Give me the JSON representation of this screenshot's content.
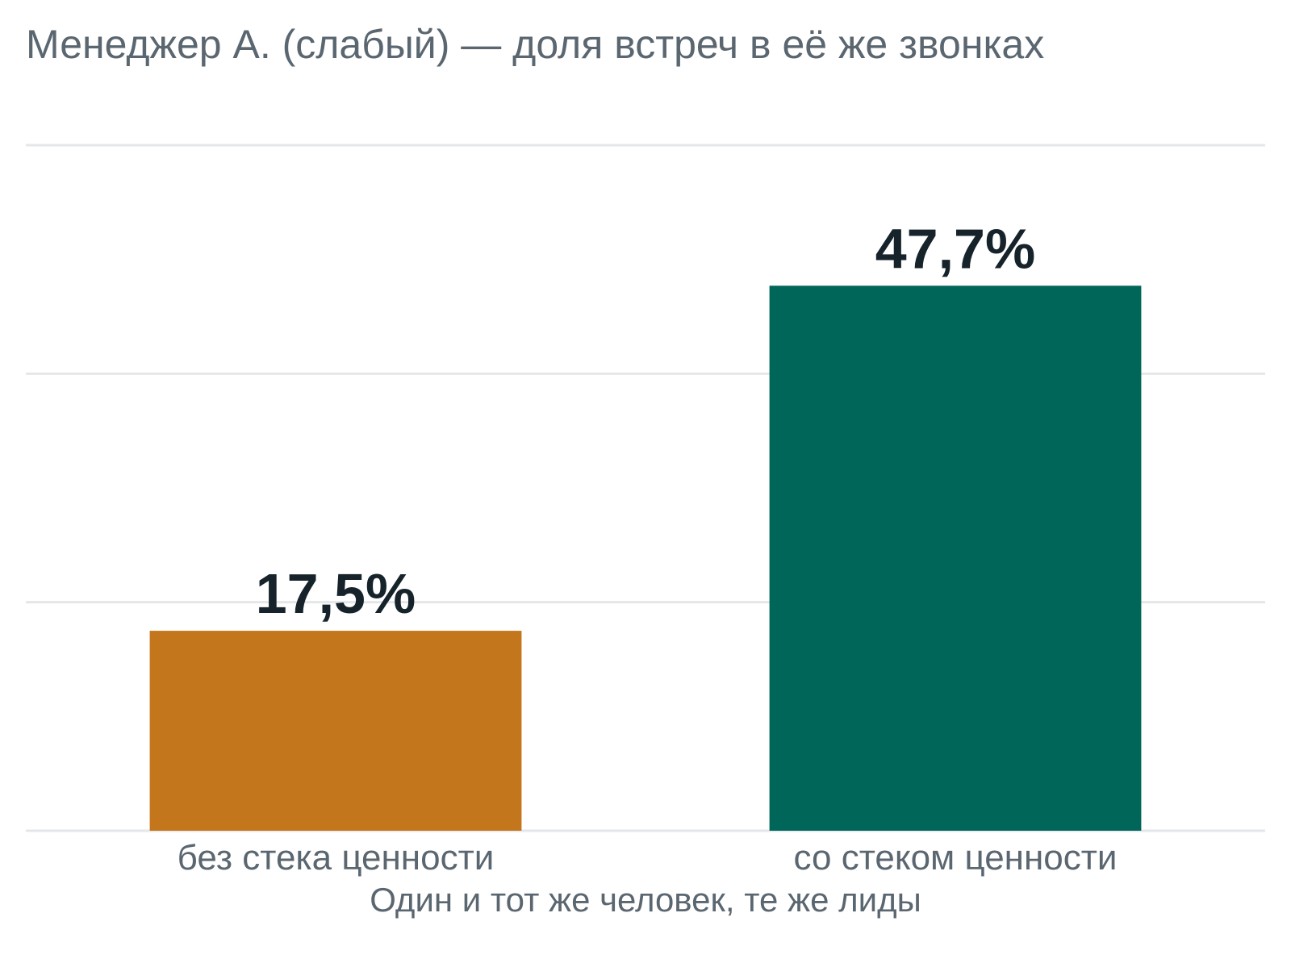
{
  "chart_data": {
    "type": "bar",
    "title": "Менеджер А. (слабый) — доля встреч в её же звонках",
    "xlabel": "Один и тот же человек, те же лиды",
    "ylabel": "",
    "categories": [
      "без стека ценности",
      "со стеком ценности"
    ],
    "values": [
      17.5,
      47.7
    ],
    "value_labels": [
      "17,5%",
      "47,7%"
    ],
    "colors": [
      "#c4761d",
      "#00665a"
    ],
    "ylim": [
      0,
      60
    ],
    "yticks": [
      0,
      20,
      40,
      60
    ],
    "grid": true,
    "legend": "none"
  }
}
